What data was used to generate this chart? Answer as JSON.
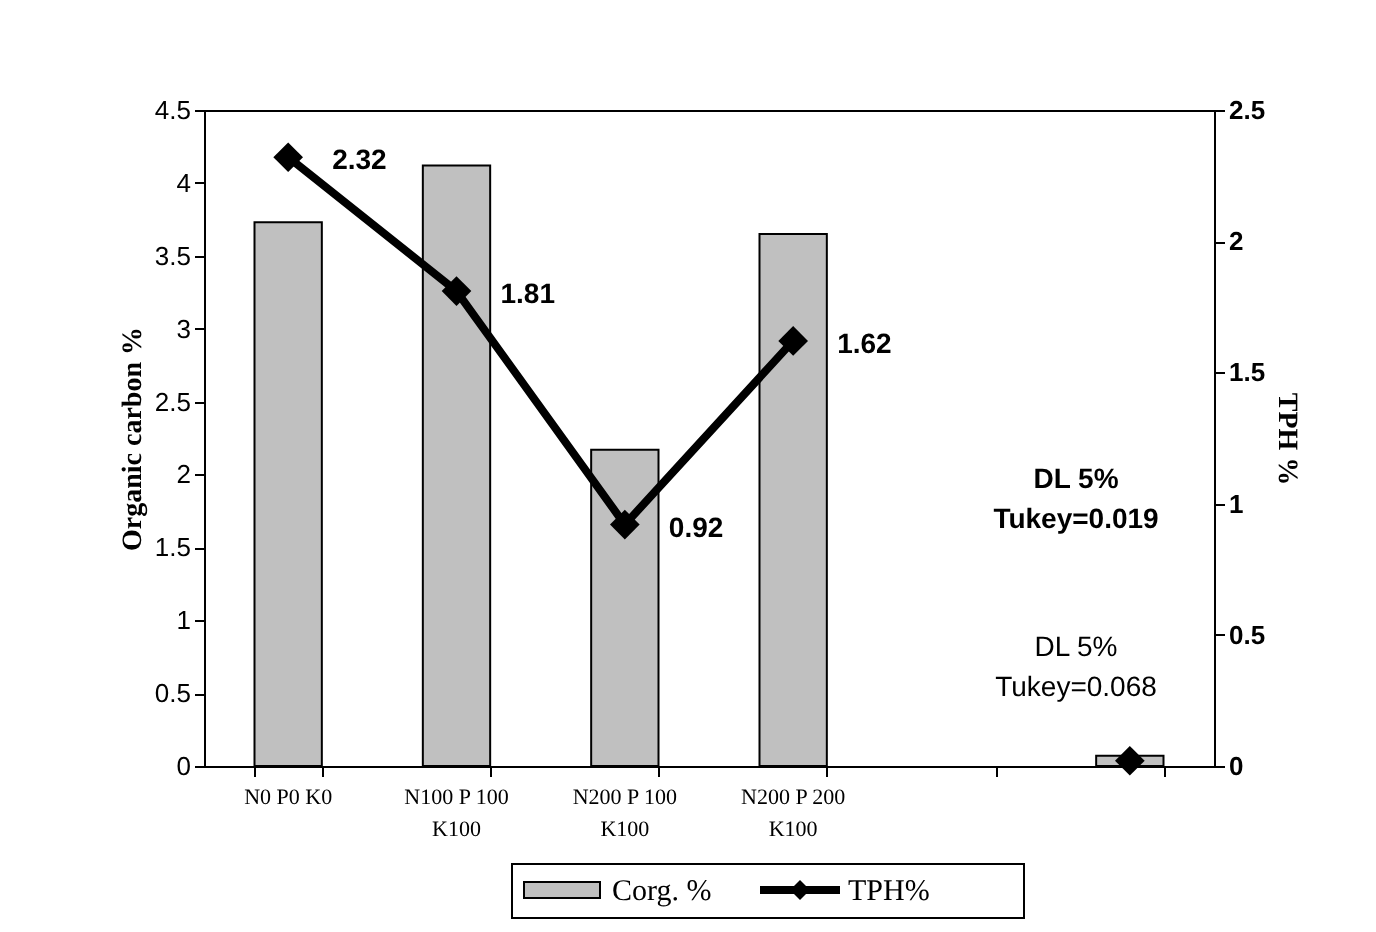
{
  "chart_data": {
    "type": "bar",
    "categories": [
      "N0 P0 K0",
      "N100 P 100 K100",
      "N200 P 100 K100",
      "N200 P 200 K100",
      null,
      null
    ],
    "series": [
      {
        "name": "Corg. %",
        "color": "#c0c0c0",
        "values": [
          3.73,
          4.12,
          2.17,
          3.65,
          null,
          0.07
        ]
      },
      {
        "name": "TPH%",
        "type": "line",
        "axis": "y2",
        "color": "#000000",
        "marker": "diamond",
        "values": [
          2.32,
          1.81,
          0.92,
          1.62,
          null,
          0.02
        ],
        "value_labels": [
          "2.32",
          "1.81",
          "0.92",
          "1.62",
          null,
          null
        ]
      }
    ],
    "ylabel": "Organic carbon %",
    "y2label": "TPH %",
    "ylim": [
      0,
      4.5
    ],
    "yticks": [
      0,
      0.5,
      1,
      1.5,
      2,
      2.5,
      3,
      3.5,
      4,
      4.5
    ],
    "y2lim": [
      0,
      2.5
    ],
    "y2ticks": [
      0,
      0.5,
      1,
      1.5,
      2,
      2.5
    ],
    "annotations": [
      "DL 5%\nTukey=0.019",
      "DL 5%\nTukey=0.068"
    ],
    "grid": false,
    "legend": "bottom"
  }
}
